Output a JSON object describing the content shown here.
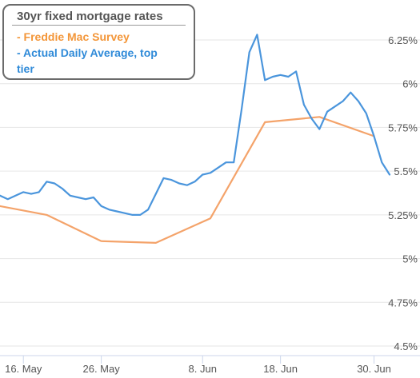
{
  "chart_data": {
    "type": "line",
    "title": "30yr fixed mortgage rates",
    "xlabel": "",
    "ylabel": "",
    "ylim": [
      4.5,
      6.5
    ],
    "yticks": [
      "4.5%",
      "4.75%",
      "5%",
      "5.25%",
      "5.5%",
      "5.75%",
      "6%",
      "6.25%"
    ],
    "yticks_values": [
      4.5,
      4.75,
      5.0,
      5.25,
      5.5,
      5.75,
      6.0,
      6.25
    ],
    "xticks": [
      "16. May",
      "26. May",
      "8. Jun",
      "18. Jun",
      "30. Jun"
    ],
    "xticks_values": [
      "2022-05-16",
      "2022-05-26",
      "2022-06-08",
      "2022-06-18",
      "2022-06-30"
    ],
    "xlim": [
      "2022-05-13",
      "2022-07-02"
    ],
    "grid": "horizontal",
    "legend_position": "top-left",
    "series": [
      {
        "name": "- Freddie Mac Survey",
        "color": "#f4a36a",
        "x": [
          "2022-05-13",
          "2022-05-19",
          "2022-05-26",
          "2022-06-02",
          "2022-06-09",
          "2022-06-16",
          "2022-06-23",
          "2022-06-30"
        ],
        "y": [
          5.3,
          5.25,
          5.1,
          5.09,
          5.23,
          5.78,
          5.81,
          5.7
        ]
      },
      {
        "name": "- Actual Daily Average, top tier",
        "color": "#4a95dc",
        "x": [
          "2022-05-13",
          "2022-05-14",
          "2022-05-15",
          "2022-05-16",
          "2022-05-17",
          "2022-05-18",
          "2022-05-19",
          "2022-05-20",
          "2022-05-21",
          "2022-05-22",
          "2022-05-23",
          "2022-05-24",
          "2022-05-25",
          "2022-05-26",
          "2022-05-27",
          "2022-05-28",
          "2022-05-29",
          "2022-05-30",
          "2022-05-31",
          "2022-06-01",
          "2022-06-02",
          "2022-06-03",
          "2022-06-04",
          "2022-06-05",
          "2022-06-06",
          "2022-06-07",
          "2022-06-08",
          "2022-06-09",
          "2022-06-10",
          "2022-06-11",
          "2022-06-12",
          "2022-06-13",
          "2022-06-14",
          "2022-06-15",
          "2022-06-16",
          "2022-06-17",
          "2022-06-18",
          "2022-06-19",
          "2022-06-20",
          "2022-06-21",
          "2022-06-22",
          "2022-06-23",
          "2022-06-24",
          "2022-06-25",
          "2022-06-26",
          "2022-06-27",
          "2022-06-28",
          "2022-06-29",
          "2022-06-30",
          "2022-07-01",
          "2022-07-02"
        ],
        "y": [
          5.36,
          5.34,
          5.36,
          5.38,
          5.37,
          5.38,
          5.44,
          5.43,
          5.4,
          5.36,
          5.35,
          5.34,
          5.35,
          5.3,
          5.28,
          5.27,
          5.26,
          5.25,
          5.25,
          5.28,
          5.37,
          5.46,
          5.45,
          5.43,
          5.42,
          5.44,
          5.48,
          5.49,
          5.52,
          5.55,
          5.55,
          5.85,
          6.18,
          6.28,
          6.02,
          6.04,
          6.05,
          6.04,
          6.07,
          5.88,
          5.8,
          5.74,
          5.84,
          5.87,
          5.9,
          5.95,
          5.9,
          5.83,
          5.7,
          5.55,
          5.48
        ]
      }
    ]
  }
}
